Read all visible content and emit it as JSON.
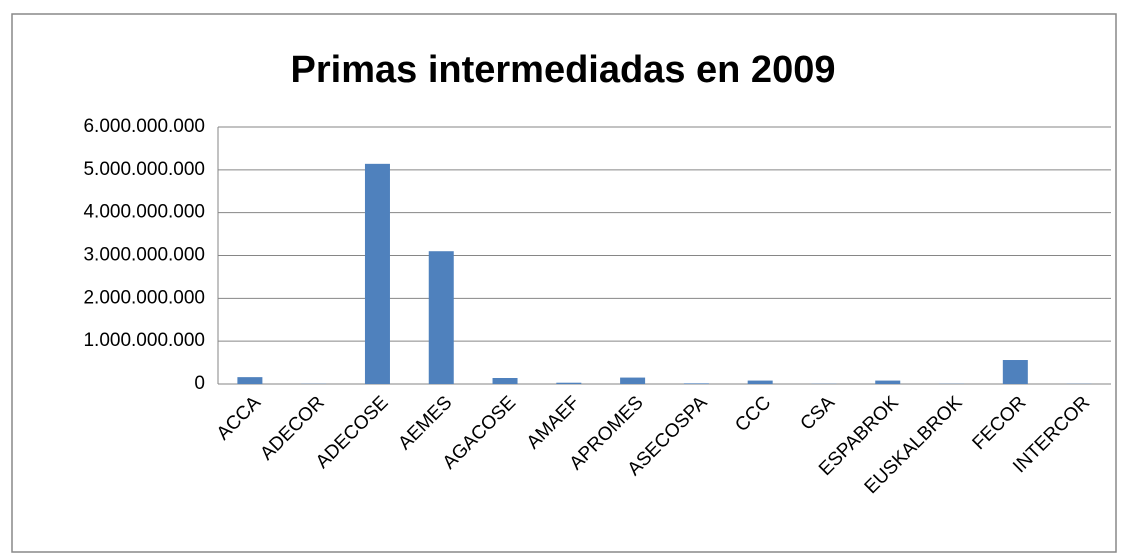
{
  "chart_data": {
    "type": "bar",
    "title": "Primas intermediadas en 2009",
    "categories": [
      "ACCA",
      "ADECOR",
      "ADECOSE",
      "AEMES",
      "AGACOSE",
      "AMAEF",
      "APROMES",
      "ASECOSPA",
      "CCC",
      "CSA",
      "ESPABROK",
      "EUSKALBROK",
      "FECOR",
      "INTERCOR"
    ],
    "values": [
      160000000,
      5000000,
      5140000000,
      3100000000,
      140000000,
      30000000,
      150000000,
      15000000,
      80000000,
      5000000,
      80000000,
      5000000,
      560000000,
      5000000
    ],
    "color": "#4f81bd",
    "ylim": [
      0,
      6000000000
    ],
    "yticks": [
      {
        "value": 0,
        "label": "0"
      },
      {
        "value": 1000000000,
        "label": "1.000.000.000"
      },
      {
        "value": 2000000000,
        "label": "2.000.000.000"
      },
      {
        "value": 3000000000,
        "label": "3.000.000.000"
      },
      {
        "value": 4000000000,
        "label": "4.000.000.000"
      },
      {
        "value": 5000000000,
        "label": "5.000.000.000"
      },
      {
        "value": 6000000000,
        "label": "6.000.000.000"
      }
    ],
    "grid": true
  }
}
